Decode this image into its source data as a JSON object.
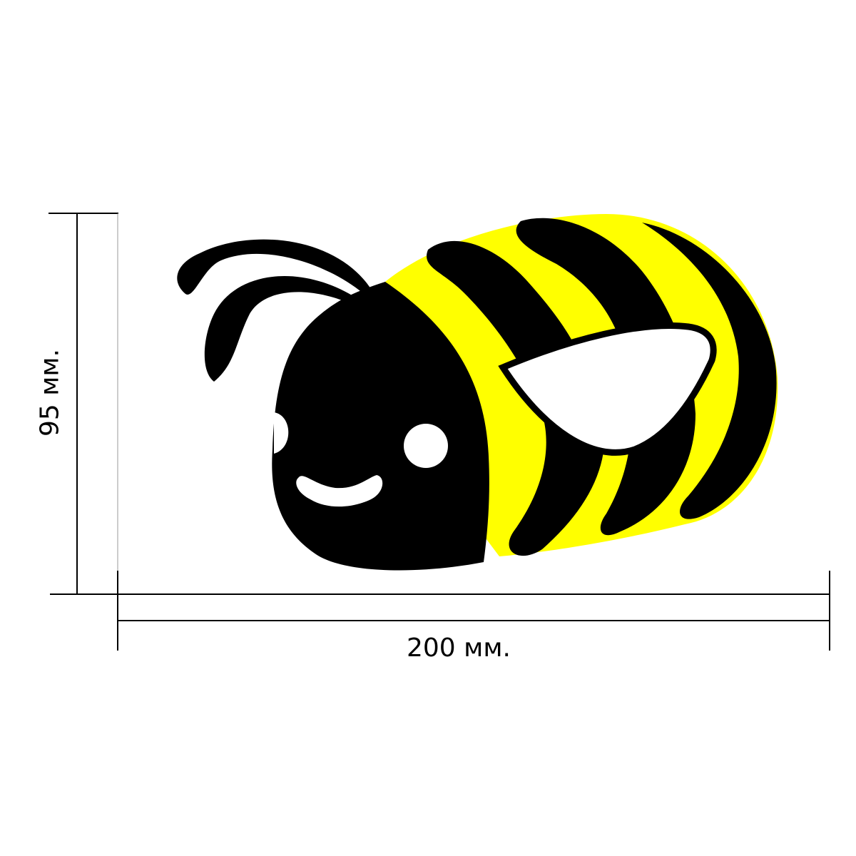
{
  "dimensions": {
    "width_label": "200 мм.",
    "height_label": "95 мм."
  },
  "illustration": {
    "subject": "bee-icon",
    "colors": {
      "body": "#000000",
      "stripes": "#FFFF00",
      "wing": "#FFFFFF",
      "lines": "#000000"
    }
  }
}
